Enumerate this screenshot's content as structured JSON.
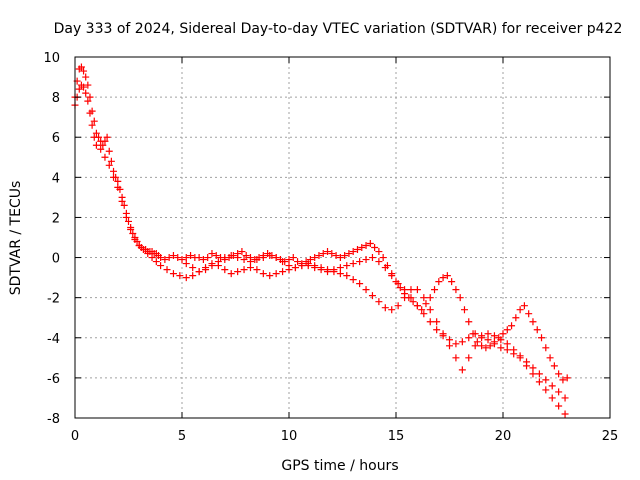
{
  "chart_data": {
    "type": "scatter",
    "title": "Day 333 of 2024, Sidereal Day-to-day VTEC variation (SDTVAR) for receiver p422",
    "xlabel": "GPS time / hours",
    "ylabel": "SDTVAR / TECUs",
    "xlim": [
      0,
      25
    ],
    "ylim": [
      -8,
      10
    ],
    "xticks": [
      "0",
      "5",
      "10",
      "15",
      "20",
      "25"
    ],
    "yticks": [
      "10",
      "8",
      "6",
      "4",
      "2",
      "0",
      "-2",
      "-4",
      "-6",
      "-8"
    ],
    "grid": true,
    "marker": "+",
    "color": "#ff0000",
    "series": [
      {
        "name": "SDTVAR",
        "x": [
          0.0,
          0.1,
          0.2,
          0.3,
          0.4,
          0.5,
          0.6,
          0.7,
          0.8,
          0.9,
          1.0,
          1.1,
          1.2,
          1.3,
          1.4,
          1.5,
          1.6,
          1.7,
          1.8,
          1.9,
          2.0,
          2.1,
          2.2,
          2.3,
          2.4,
          2.5,
          2.6,
          2.7,
          2.8,
          2.9,
          3.0,
          3.1,
          3.2,
          3.3,
          3.4,
          3.5,
          3.6,
          3.7,
          3.8,
          3.9,
          4.0,
          4.2,
          4.4,
          4.6,
          4.8,
          5.0,
          5.2,
          5.4,
          5.6,
          5.8,
          6.0,
          6.2,
          6.4,
          6.6,
          6.8,
          7.0,
          7.2,
          7.4,
          7.6,
          7.8,
          8.0,
          8.2,
          8.4,
          8.6,
          8.8,
          9.0,
          9.2,
          9.4,
          9.6,
          9.8,
          10.0,
          10.2,
          10.4,
          10.6,
          10.8,
          11.0,
          11.2,
          11.4,
          11.6,
          11.8,
          12.0,
          12.2,
          12.4,
          12.6,
          12.8,
          13.0,
          13.2,
          13.4,
          13.6,
          13.8,
          14.0,
          14.2,
          14.4,
          14.6,
          14.8,
          15.0,
          15.2,
          15.4,
          15.6,
          15.8,
          16.0,
          16.2,
          16.4,
          16.6,
          16.8,
          17.0,
          17.2,
          17.4,
          17.6,
          17.8,
          18.0,
          18.2,
          18.4,
          18.6,
          18.8,
          19.0,
          19.2,
          19.4,
          19.6,
          19.8,
          20.0,
          20.2,
          20.4,
          20.6,
          20.8,
          21.0,
          21.2,
          21.4,
          21.6,
          21.8,
          22.0,
          22.2,
          22.4,
          22.6,
          22.8,
          23.0,
          0.0,
          0.1,
          0.2,
          0.3,
          0.4,
          0.5,
          0.6,
          0.7,
          0.8,
          0.9,
          1.0,
          1.2,
          1.4,
          1.6,
          1.8,
          2.0,
          2.2,
          2.4,
          2.6,
          2.8,
          3.0,
          3.2,
          3.4,
          3.6,
          3.8,
          4.0,
          4.3,
          4.6,
          4.9,
          5.2,
          5.5,
          5.8,
          6.1,
          6.4,
          6.7,
          7.0,
          7.3,
          7.6,
          7.9,
          8.2,
          8.5,
          8.8,
          9.1,
          9.4,
          9.7,
          10.0,
          10.3,
          10.6,
          10.9,
          11.2,
          11.5,
          11.8,
          12.1,
          12.4,
          12.7,
          13.0,
          13.3,
          13.6,
          13.9,
          14.2,
          14.5,
          14.8,
          15.1,
          15.4,
          15.7,
          16.0,
          16.3,
          16.6,
          16.9,
          17.2,
          17.5,
          17.8,
          18.1,
          18.4,
          18.7,
          19.0,
          19.3,
          19.6,
          19.9,
          20.2,
          20.5,
          20.8,
          21.1,
          21.4,
          21.7,
          22.0,
          22.3,
          22.6,
          22.9,
          5.2,
          5.5,
          5.8,
          6.1,
          6.4,
          6.7,
          7.0,
          7.3,
          7.6,
          7.9,
          8.2,
          8.5,
          8.8,
          9.1,
          9.4,
          9.7,
          10.0,
          10.3,
          10.6,
          10.9,
          11.2,
          11.5,
          11.8,
          12.1,
          12.4,
          12.7,
          13.0,
          13.3,
          13.6,
          13.9,
          14.2,
          14.5,
          14.8,
          15.1,
          15.4,
          15.7,
          16.0,
          16.3,
          16.6,
          16.9,
          17.2,
          17.5,
          17.8,
          18.1,
          18.4,
          18.7,
          19.0,
          19.3,
          19.6,
          19.9,
          20.2,
          20.5,
          20.8,
          21.1,
          21.4,
          21.7,
          22.0,
          22.3,
          22.6,
          22.9
        ],
        "y": [
          8.0,
          8.8,
          9.4,
          9.5,
          9.3,
          9.0,
          8.6,
          8.0,
          7.3,
          6.8,
          6.2,
          6.0,
          5.8,
          5.6,
          5.8,
          6.0,
          5.3,
          4.8,
          4.3,
          4.0,
          3.8,
          3.4,
          3.0,
          2.6,
          2.2,
          1.8,
          1.5,
          1.2,
          1.0,
          0.8,
          0.6,
          0.5,
          0.4,
          0.4,
          0.3,
          0.3,
          0.3,
          0.2,
          0.2,
          0.1,
          0.0,
          -0.1,
          0.0,
          0.1,
          0.0,
          -0.1,
          0.0,
          0.1,
          0.0,
          0.0,
          -0.1,
          0.0,
          0.2,
          0.1,
          0.0,
          -0.1,
          0.0,
          0.1,
          0.2,
          0.3,
          0.1,
          0.0,
          -0.1,
          0.0,
          0.1,
          0.2,
          0.1,
          0.0,
          -0.1,
          -0.2,
          -0.1,
          0.0,
          -0.2,
          -0.3,
          -0.2,
          -0.1,
          0.0,
          0.1,
          0.2,
          0.3,
          0.2,
          0.1,
          0.0,
          0.1,
          0.2,
          0.3,
          0.4,
          0.5,
          0.6,
          0.7,
          0.5,
          0.3,
          0.0,
          -0.4,
          -0.8,
          -1.2,
          -1.5,
          -1.8,
          -2.0,
          -2.2,
          -2.4,
          -2.6,
          -2.3,
          -2.0,
          -1.6,
          -1.2,
          -1.0,
          -0.9,
          -1.2,
          -1.6,
          -2.0,
          -2.6,
          -3.2,
          -3.8,
          -4.2,
          -4.4,
          -4.5,
          -4.4,
          -4.2,
          -4.0,
          -3.8,
          -3.6,
          -3.4,
          -3.0,
          -2.6,
          -2.4,
          -2.8,
          -3.2,
          -3.6,
          -4.0,
          -4.5,
          -5.0,
          -5.4,
          -5.8,
          -6.1,
          -6.0,
          7.6,
          8.0,
          8.4,
          8.6,
          8.5,
          8.2,
          7.8,
          7.2,
          6.6,
          6.0,
          5.6,
          5.4,
          5.0,
          4.6,
          4.0,
          3.5,
          2.8,
          2.0,
          1.4,
          0.9,
          0.6,
          0.4,
          0.2,
          0.0,
          -0.2,
          -0.4,
          -0.6,
          -0.8,
          -0.9,
          -1.0,
          -0.9,
          -0.7,
          -0.5,
          -0.3,
          -0.4,
          -0.6,
          -0.8,
          -0.7,
          -0.6,
          -0.5,
          -0.6,
          -0.8,
          -0.9,
          -0.8,
          -0.7,
          -0.6,
          -0.5,
          -0.4,
          -0.4,
          -0.5,
          -0.6,
          -0.7,
          -0.6,
          -0.5,
          -0.4,
          -0.3,
          -0.2,
          -0.1,
          0.0,
          -0.2,
          -0.5,
          -0.9,
          -1.3,
          -1.6,
          -2.0,
          -2.4,
          -2.8,
          -3.2,
          -3.6,
          -3.9,
          -4.1,
          -4.3,
          -4.2,
          -4.0,
          -3.8,
          -3.9,
          -4.1,
          -4.3,
          -4.5,
          -4.6,
          -4.8,
          -5.0,
          -5.4,
          -5.8,
          -6.2,
          -6.6,
          -7.0,
          -7.4,
          -7.8,
          -0.3,
          -0.5,
          -0.7,
          -0.6,
          -0.4,
          -0.2,
          0.0,
          0.1,
          0.0,
          -0.1,
          -0.2,
          -0.1,
          0.0,
          0.1,
          0.0,
          -0.2,
          -0.4,
          -0.5,
          -0.4,
          -0.3,
          -0.4,
          -0.5,
          -0.6,
          -0.7,
          -0.8,
          -0.9,
          -1.1,
          -1.3,
          -1.6,
          -1.9,
          -2.2,
          -2.5,
          -2.6,
          -2.4,
          -2.0,
          -1.6,
          -1.6,
          -2.0,
          -2.6,
          -3.2,
          -3.8,
          -4.4,
          -5.0,
          -5.6,
          -5.0,
          -4.4,
          -4.0,
          -3.8,
          -3.9,
          -4.1,
          -4.3,
          -4.6,
          -4.9,
          -5.2,
          -5.5,
          -5.8,
          -6.1,
          -6.4,
          -6.7,
          -7.0
        ]
      }
    ]
  }
}
